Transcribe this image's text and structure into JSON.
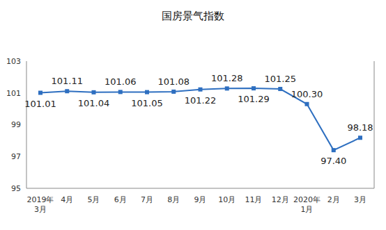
{
  "chart_data": {
    "type": "line",
    "title": "国房景气指数",
    "categories": [
      "2019年3月",
      "4月",
      "5月",
      "6月",
      "7月",
      "8月",
      "9月",
      "10月",
      "11月",
      "12月",
      "2020年1月",
      "2月",
      "3月"
    ],
    "values": [
      101.01,
      101.11,
      101.04,
      101.06,
      101.05,
      101.08,
      101.22,
      101.28,
      101.29,
      101.25,
      100.3,
      97.4,
      98.18
    ],
    "value_labels": [
      "101.01",
      "101.11",
      "101.04",
      "101.06",
      "101.05",
      "101.08",
      "101.22",
      "101.28",
      "101.29",
      "101.25",
      "100.30",
      "97.40",
      "98.18"
    ],
    "color": "#2e6fc0",
    "marker": "square",
    "ylim": [
      95,
      103
    ],
    "yticks": [
      95,
      97,
      99,
      101,
      103
    ],
    "grid": false,
    "data_labels": true
  }
}
